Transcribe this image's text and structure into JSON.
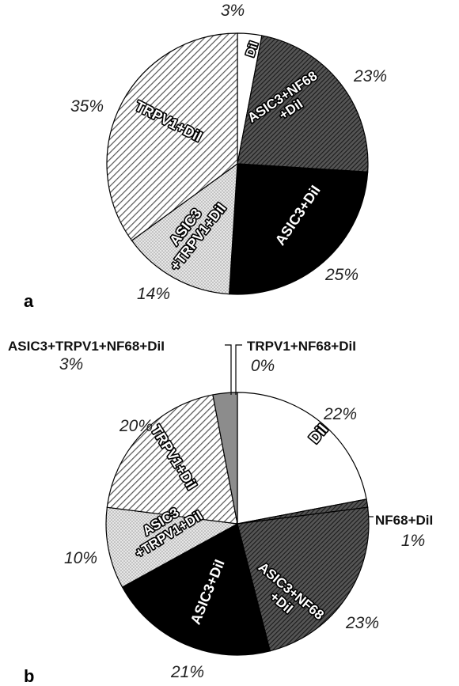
{
  "chart_data": [
    {
      "type": "pie",
      "panel_label": "a",
      "slices": [
        {
          "label": "DiI",
          "value": 3,
          "value_label": "3%",
          "pattern": "white"
        },
        {
          "label": "ASIC3+NF68\n+DiI",
          "value": 23,
          "value_label": "23%",
          "pattern": "dense-dark"
        },
        {
          "label": "ASIC3+DiI",
          "value": 25,
          "value_label": "25%",
          "pattern": "black"
        },
        {
          "label": "ASIC3\n+TRPV1+DiI",
          "value": 14,
          "value_label": "14%",
          "pattern": "dots"
        },
        {
          "label": "TRPV1+DiI",
          "value": 35,
          "value_label": "35%",
          "pattern": "hatch"
        }
      ]
    },
    {
      "type": "pie",
      "panel_label": "b",
      "slices": [
        {
          "label": "DiI",
          "value": 22,
          "value_label": "22%",
          "pattern": "white"
        },
        {
          "label": "NF68+DiI",
          "value": 1,
          "value_label": "1%",
          "pattern": "dense-dark"
        },
        {
          "label": "ASIC3+NF68\n+DiI",
          "value": 23,
          "value_label": "23%",
          "pattern": "dense-dark"
        },
        {
          "label": "ASIC3+DiI",
          "value": 21,
          "value_label": "21%",
          "pattern": "black"
        },
        {
          "label": "ASIC3\n+TRPV1+DiI",
          "value": 10,
          "value_label": "10%",
          "pattern": "dots"
        },
        {
          "label": "TRPV1+DiI",
          "value": 20,
          "value_label": "20%",
          "pattern": "hatch"
        },
        {
          "label": "ASIC3+TRPV1+NF68+DiI",
          "value": 3,
          "value_label": "3%",
          "pattern": "gray"
        },
        {
          "label": "TRPV1+NF68+DiI",
          "value": 0,
          "value_label": "0%",
          "pattern": "dense-dark"
        }
      ]
    }
  ]
}
